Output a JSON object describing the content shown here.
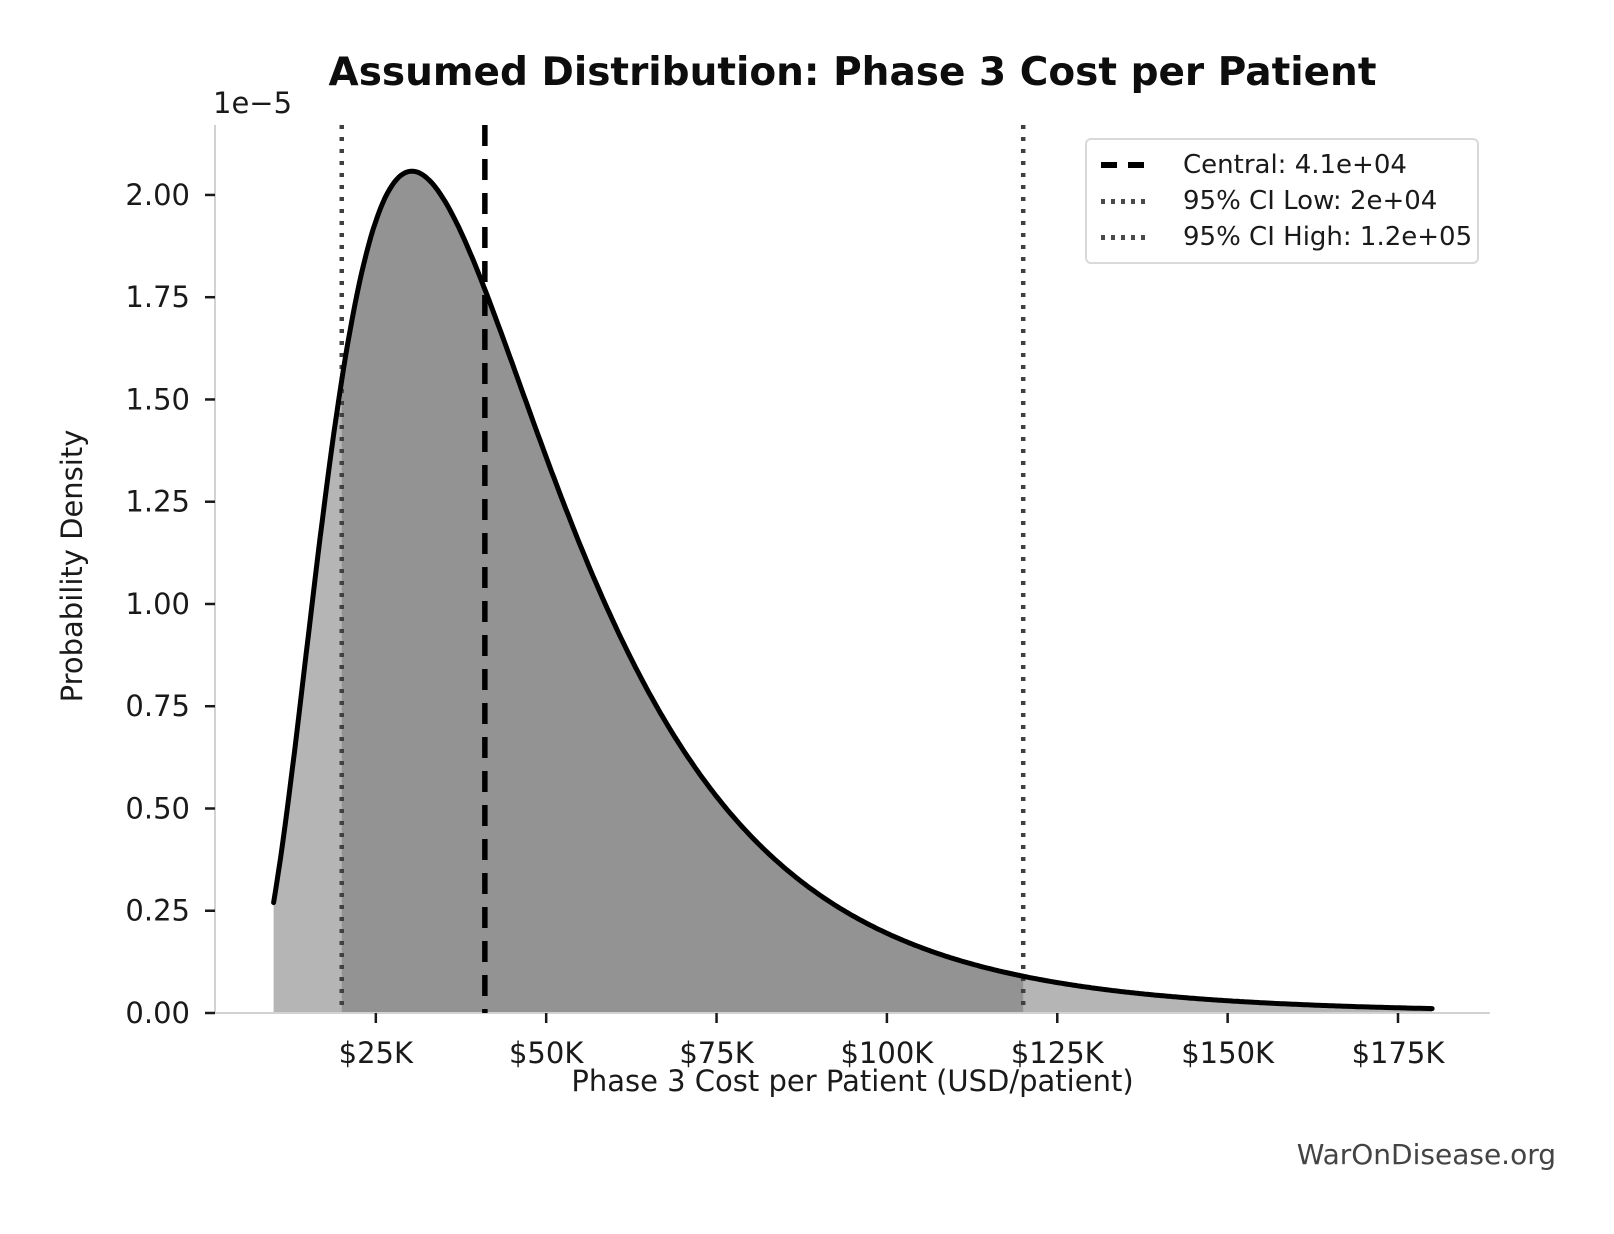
{
  "page": {
    "watermark": "WarOnDisease.org"
  },
  "chart_data": {
    "type": "area",
    "title": "Assumed Distribution: Phase 3 Cost per Patient",
    "xlabel": "Phase 3 Cost per Patient (USD/patient)",
    "ylabel": "Probability Density",
    "y_scale_offset_label": "1e−5",
    "grid": false,
    "legend_position": "upper right",
    "distribution": {
      "family": "lognormal",
      "median_usd": 41000,
      "sigma_log": 0.55
    },
    "curve_x_range_usd": [
      10000,
      180000
    ],
    "xlim_usd": [
      1400,
      188500
    ],
    "ylim_density": [
      0,
      2.171e-05
    ],
    "ci_shaded_region_usd": [
      20000,
      120000
    ],
    "xticks": [
      {
        "value_usd": 25000,
        "label": "$25K"
      },
      {
        "value_usd": 50000,
        "label": "$50K"
      },
      {
        "value_usd": 75000,
        "label": "$75K"
      },
      {
        "value_usd": 100000,
        "label": "$100K"
      },
      {
        "value_usd": 125000,
        "label": "$125K"
      },
      {
        "value_usd": 150000,
        "label": "$150K"
      },
      {
        "value_usd": 175000,
        "label": "$175K"
      }
    ],
    "yticks": [
      {
        "value_1e5": 0.0,
        "label": "0.00"
      },
      {
        "value_1e5": 0.25,
        "label": "0.25"
      },
      {
        "value_1e5": 0.5,
        "label": "0.50"
      },
      {
        "value_1e5": 0.75,
        "label": "0.75"
      },
      {
        "value_1e5": 1.0,
        "label": "1.00"
      },
      {
        "value_1e5": 1.25,
        "label": "1.25"
      },
      {
        "value_1e5": 1.5,
        "label": "1.50"
      },
      {
        "value_1e5": 1.75,
        "label": "1.75"
      },
      {
        "value_1e5": 2.0,
        "label": "2.00"
      }
    ],
    "markers": [
      {
        "id": "central-line",
        "value_usd": 41000,
        "label": "Central: 4.1e+04",
        "line_style": "dashed",
        "color": "#000000"
      },
      {
        "id": "ci-low-line",
        "value_usd": 20000,
        "label": "95% CI Low: 2e+04",
        "line_style": "dotted",
        "color": "#404040"
      },
      {
        "id": "ci-high-line",
        "value_usd": 120000,
        "label": "95% CI High: 1.2e+05",
        "line_style": "dotted",
        "color": "#404040"
      }
    ],
    "sample_points": [
      {
        "x_usd": 10000,
        "density_1e5": 0.27
      },
      {
        "x_usd": 20000,
        "density_1e5": 1.55
      },
      {
        "x_usd": 30000,
        "density_1e5": 2.06
      },
      {
        "x_usd": 41000,
        "density_1e5": 1.77
      },
      {
        "x_usd": 50000,
        "density_1e5": 1.36
      },
      {
        "x_usd": 75000,
        "density_1e5": 0.53
      },
      {
        "x_usd": 100000,
        "density_1e5": 0.19
      },
      {
        "x_usd": 120000,
        "density_1e5": 0.09
      },
      {
        "x_usd": 150000,
        "density_1e5": 0.03
      },
      {
        "x_usd": 180000,
        "density_1e5": 0.01
      }
    ],
    "colors": {
      "curve": "#000000",
      "fill_outer": "#b5b5b5",
      "fill_ci": "#939393",
      "spine": "#d2d2d2",
      "tick": "#1a1a1a",
      "tick_label": "#1a1a1a",
      "dotted_line": "#404040",
      "dashed_line": "#000000",
      "legend_border": "#d9d9d9",
      "watermark": "#444444"
    }
  }
}
